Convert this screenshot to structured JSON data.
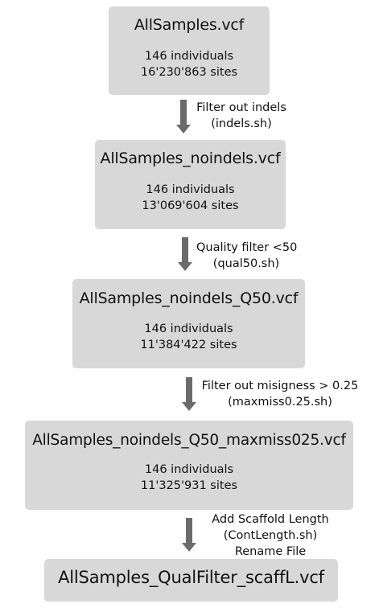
{
  "boxes": [
    {
      "filename": "AllSamples.vcf",
      "individuals": "146 individuals",
      "sites": "16'230'863 sites"
    },
    {
      "filename": "AllSamples_noindels.vcf",
      "individuals": "146 individuals",
      "sites": "13'069'604 sites"
    },
    {
      "filename": "AllSamples_noindels_Q50.vcf",
      "individuals": "146 individuals",
      "sites": "11'384'422 sites"
    },
    {
      "filename": "AllSamples_noindels_Q50_maxmiss025.vcf",
      "individuals": "146 individuals",
      "sites": "11'325'931 sites"
    },
    {
      "filename": "AllSamples_QualFilter_scaffL.vcf"
    }
  ],
  "steps": [
    {
      "line1": "Filter out indels",
      "line2": "(indels.sh)"
    },
    {
      "line1": "Quality filter <50",
      "line2": "(qual50.sh)"
    },
    {
      "line1": "Filter out misigness > 0.25",
      "line2": "(maxmiss0.25.sh)"
    },
    {
      "line1": "Add Scaffold Length",
      "line2": "(ContLength.sh)",
      "line3": "Rename File"
    }
  ],
  "colors": {
    "box": "#d8d8d8",
    "arrow": "#6b6b6b",
    "text": "#111111"
  }
}
